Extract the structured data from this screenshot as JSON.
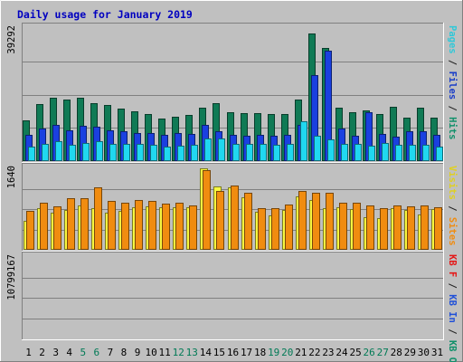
{
  "chart_data": {
    "type": "bar",
    "title": "Daily usage for January 2019",
    "categories": [
      "1",
      "2",
      "3",
      "4",
      "5",
      "6",
      "7",
      "8",
      "9",
      "10",
      "11",
      "12",
      "13",
      "14",
      "15",
      "16",
      "17",
      "18",
      "19",
      "20",
      "21",
      "22",
      "23",
      "24",
      "25",
      "26",
      "27",
      "28",
      "29",
      "30",
      "31"
    ],
    "weekend_days": [
      "5",
      "6",
      "12",
      "13",
      "19",
      "20",
      "26",
      "27"
    ],
    "panels": [
      {
        "id": "hits",
        "max_label": "39292",
        "ylim": [
          0,
          39292
        ],
        "series": [
          {
            "name": "Hits",
            "color": "#107a55",
            "values": [
              12000,
              16900,
              18600,
              18200,
              18600,
              17100,
              16600,
              15600,
              14800,
              14000,
              12500,
              13200,
              13700,
              15900,
              17000,
              14400,
              14200,
              14300,
              13800,
              13800,
              18200,
              37600,
              33300,
              15900,
              14400,
              15100,
              13900,
              16100,
              12700,
              15900,
              12700
            ]
          },
          {
            "name": "Files",
            "color": "#1a40e0",
            "values": [
              7800,
              9500,
              10700,
              9000,
              10400,
              10100,
              9000,
              8800,
              8300,
              8400,
              7800,
              8300,
              8000,
              10600,
              8800,
              7700,
              7600,
              7700,
              7400,
              7700,
              10700,
              25500,
              32500,
              9700,
              7500,
              14500,
              8100,
              7200,
              8700,
              8700,
              7700
            ]
          },
          {
            "name": "Pages",
            "color": "#20d8f0",
            "values": [
              4200,
              5100,
              6000,
              4900,
              5300,
              6000,
              5100,
              5000,
              5100,
              4900,
              4300,
              4500,
              4900,
              6600,
              6800,
              5200,
              5200,
              5100,
              4900,
              5100,
              11800,
              7500,
              6300,
              5200,
              5000,
              4500,
              5400,
              4700,
              4700,
              4700,
              4300
            ]
          }
        ]
      },
      {
        "id": "visits",
        "max_label": "1640",
        "ylim": [
          0,
          1640
        ],
        "series": [
          {
            "name": "Visits",
            "color": "#f8f840",
            "values": [
              580,
              830,
              750,
              800,
              900,
              830,
              740,
              780,
              850,
              870,
              860,
              850,
              860,
              1640,
              1280,
              1250,
              1060,
              770,
              690,
              800,
              1070,
              1000,
              840,
              860,
              820,
              660,
              640,
              840,
              800,
              710,
              820
            ]
          },
          {
            "name": "Sites",
            "color": "#f08c10",
            "values": [
              790,
              950,
              870,
              1030,
              1030,
              1260,
              980,
              940,
              1000,
              980,
              930,
              940,
              900,
              1610,
              1190,
              1300,
              1140,
              830,
              830,
              920,
              1180,
              1150,
              1150,
              950,
              950,
              890,
              840,
              890,
              870,
              890,
              860
            ]
          }
        ]
      },
      {
        "id": "kbytes",
        "max_label": "10799167",
        "ylim": [
          0,
          10799167
        ],
        "series": [
          {
            "name": "KB F",
            "color": "#e41818",
            "values": [
              7400,
              5400,
              9200,
              5900,
              10800,
              5700,
              8300,
              6900,
              8600,
              8400,
              7900,
              8200,
              8400,
              5000,
              6100,
              5400,
              3600,
              6200,
              9500,
              6200,
              6100,
              10200,
              10000,
              8200,
              10400,
              9500,
              10300,
              5800,
              7300,
              9500,
              6100
            ]
          }
        ]
      }
    ],
    "right_labels": [
      {
        "segments": [
          {
            "text": "Pages",
            "color": "#30c8d8"
          },
          {
            "text": " / ",
            "color": "#202020"
          },
          {
            "text": "Files",
            "color": "#1a3ec8"
          },
          {
            "text": " / ",
            "color": "#202020"
          },
          {
            "text": "Hits",
            "color": "#10906a"
          }
        ]
      },
      {
        "segments": [
          {
            "text": "Visits",
            "color": "#e0d020"
          },
          {
            "text": " / ",
            "color": "#202020"
          },
          {
            "text": "Sites",
            "color": "#f08c10"
          }
        ]
      },
      {
        "segments": [
          {
            "text": "KB F",
            "color": "#e41818"
          },
          {
            "text": " / ",
            "color": "#202020"
          },
          {
            "text": "KB In",
            "color": "#2050d8"
          },
          {
            "text": " / ",
            "color": "#202020"
          },
          {
            "text": "KB Out",
            "color": "#10906a"
          }
        ]
      }
    ],
    "grid": true
  }
}
